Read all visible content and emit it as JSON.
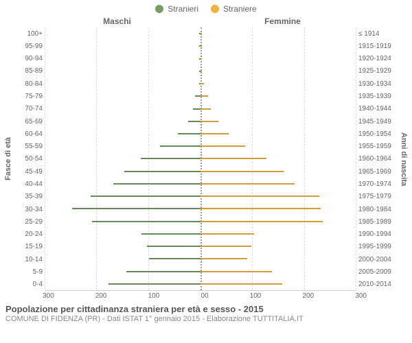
{
  "legend": {
    "male": {
      "label": "Stranieri",
      "color": "#759d64"
    },
    "female": {
      "label": "Straniere",
      "color": "#f1b23e"
    }
  },
  "column_headers": {
    "left": "Maschi",
    "right": "Femmine"
  },
  "axis_labels": {
    "left": "Fasce di età",
    "right": "Anni di nascita"
  },
  "chart": {
    "type": "population-pyramid",
    "x_max": 300,
    "x_ticks_left": [
      "300",
      "200",
      "100",
      "0"
    ],
    "x_ticks_right": [
      "0",
      "100",
      "200",
      "300"
    ],
    "grid_color": "#dddddd",
    "center_line_color": "#999999",
    "background_color": "#ffffff",
    "bar_border_color": "rgba(0,0,0,0.12)",
    "rows": [
      {
        "age": "100+",
        "birth": "≤ 1914",
        "m": 0,
        "f": 0
      },
      {
        "age": "95-99",
        "birth": "1915-1919",
        "m": 0,
        "f": 0
      },
      {
        "age": "90-94",
        "birth": "1920-1924",
        "m": 0,
        "f": 0
      },
      {
        "age": "85-89",
        "birth": "1925-1929",
        "m": 0,
        "f": 1
      },
      {
        "age": "80-84",
        "birth": "1930-1934",
        "m": 3,
        "f": 6
      },
      {
        "age": "75-79",
        "birth": "1935-1939",
        "m": 10,
        "f": 14
      },
      {
        "age": "70-74",
        "birth": "1940-1944",
        "m": 14,
        "f": 20
      },
      {
        "age": "65-69",
        "birth": "1945-1949",
        "m": 24,
        "f": 34
      },
      {
        "age": "60-64",
        "birth": "1950-1954",
        "m": 44,
        "f": 54
      },
      {
        "age": "55-59",
        "birth": "1955-1959",
        "m": 78,
        "f": 86
      },
      {
        "age": "50-54",
        "birth": "1960-1964",
        "m": 116,
        "f": 128
      },
      {
        "age": "45-49",
        "birth": "1965-1969",
        "m": 148,
        "f": 160
      },
      {
        "age": "40-44",
        "birth": "1970-1974",
        "m": 168,
        "f": 182
      },
      {
        "age": "35-39",
        "birth": "1975-1979",
        "m": 212,
        "f": 230
      },
      {
        "age": "30-34",
        "birth": "1980-1984",
        "m": 248,
        "f": 232
      },
      {
        "age": "25-29",
        "birth": "1985-1989",
        "m": 210,
        "f": 236
      },
      {
        "age": "20-24",
        "birth": "1990-1994",
        "m": 114,
        "f": 104
      },
      {
        "age": "15-19",
        "birth": "1995-1999",
        "m": 104,
        "f": 98
      },
      {
        "age": "10-14",
        "birth": "2000-2004",
        "m": 100,
        "f": 90
      },
      {
        "age": "5-9",
        "birth": "2005-2009",
        "m": 144,
        "f": 138
      },
      {
        "age": "0-4",
        "birth": "2010-2014",
        "m": 178,
        "f": 158
      }
    ]
  },
  "footer": {
    "title": "Popolazione per cittadinanza straniera per età e sesso - 2015",
    "subtitle": "COMUNE DI FIDENZA (PR) - Dati ISTAT 1° gennaio 2015 - Elaborazione TUTTITALIA.IT"
  }
}
